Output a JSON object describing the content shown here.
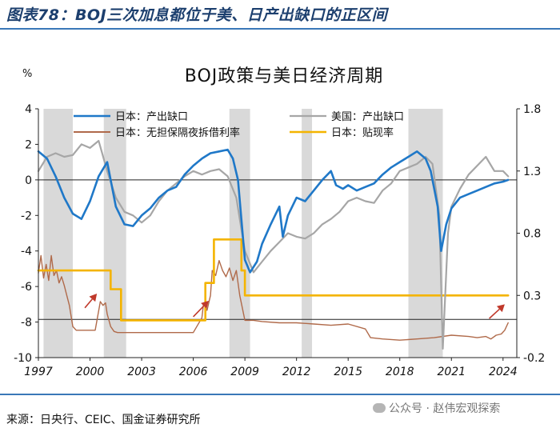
{
  "figure_title": "图表78：BOJ三次加息都位于美、日产出缺口的正区间",
  "source": "来源：日央行、CEIC、国金证券研究所",
  "watermark": "公众号 · 赵伟宏观探索",
  "colors": {
    "jp_gap": "#1f78c8",
    "us_gap": "#a6a6a6",
    "call_rate": "#b06a4a",
    "discount_rate": "#f4b400",
    "shade": "#d9d9d9",
    "arrow": "#c0392b",
    "title_rule": "#3a78b8"
  },
  "chart_data": {
    "type": "line",
    "title": "BOJ政策与美日经济周期",
    "left_axis": {
      "unit_label": "%",
      "range": [
        -10,
        4
      ],
      "ticks": [
        -10,
        -8,
        -6,
        -4,
        -2,
        0,
        2,
        4
      ]
    },
    "right_axis": {
      "range": [
        -0.2,
        1.8
      ],
      "ticks": [
        -0.2,
        0.3,
        0.8,
        1.3,
        1.8
      ]
    },
    "x_axis": {
      "range": [
        1997,
        2024.8
      ],
      "ticks": [
        1997,
        2000,
        2003,
        2006,
        2009,
        2012,
        2015,
        2018,
        2021,
        2024
      ]
    },
    "legend": [
      {
        "label": "日本：产出缺口",
        "series": "jp_gap"
      },
      {
        "label": "美国：产出缺口",
        "series": "us_gap"
      },
      {
        "label": "日本：无担保隔夜拆借利率",
        "series": "call_rate"
      },
      {
        "label": "日本：贴现率",
        "series": "discount_rate"
      }
    ],
    "legend_position": "top",
    "shaded_periods": [
      [
        1997.3,
        1999.0
      ],
      [
        2000.8,
        2002.1
      ],
      [
        2008.1,
        2009.3
      ],
      [
        2012.3,
        2012.9
      ],
      [
        2018.5,
        2020.5
      ]
    ],
    "arrows": [
      {
        "from": [
          1999.7,
          -7.2
        ],
        "to": [
          2000.4,
          -6.4
        ]
      },
      {
        "from": [
          2006.0,
          -7.7
        ],
        "to": [
          2006.9,
          -6.8
        ]
      },
      {
        "from": [
          2023.2,
          -7.8
        ],
        "to": [
          2024.1,
          -7.0
        ]
      }
    ],
    "reference_lines": [
      {
        "axis": "left",
        "y": 0
      },
      {
        "axis": "left",
        "y": -7.85
      }
    ],
    "series": [
      {
        "id": "jp_gap",
        "name": "日本：产出缺口",
        "axis": "left",
        "width": 2.6,
        "x": [
          1997.0,
          1997.5,
          1998.0,
          1998.5,
          1999.0,
          1999.5,
          2000.0,
          2000.5,
          2001.0,
          2001.5,
          2002.0,
          2002.5,
          2003.0,
          2003.5,
          2004.0,
          2004.5,
          2005.0,
          2005.5,
          2006.0,
          2006.5,
          2007.0,
          2007.5,
          2008.0,
          2008.3,
          2008.6,
          2009.0,
          2009.3,
          2009.7,
          2010.0,
          2010.5,
          2011.0,
          2011.2,
          2011.5,
          2012.0,
          2012.5,
          2013.0,
          2013.5,
          2014.0,
          2014.3,
          2014.7,
          2015.0,
          2015.5,
          2016.0,
          2016.5,
          2017.0,
          2017.5,
          2018.0,
          2018.5,
          2019.0,
          2019.5,
          2019.8,
          2020.2,
          2020.4,
          2020.7,
          2021.0,
          2021.5,
          2022.0,
          2022.5,
          2023.0,
          2023.5,
          2024.0,
          2024.3
        ],
        "y": [
          1.6,
          1.2,
          0.2,
          -1.0,
          -1.9,
          -2.2,
          -1.2,
          0.2,
          1.0,
          -1.5,
          -2.5,
          -2.6,
          -2.0,
          -1.6,
          -1.0,
          -0.6,
          -0.4,
          0.3,
          0.8,
          1.2,
          1.5,
          1.6,
          1.7,
          1.2,
          0.0,
          -4.5,
          -5.2,
          -4.6,
          -3.6,
          -2.5,
          -1.5,
          -3.2,
          -2.0,
          -1.0,
          -1.2,
          -0.6,
          0.0,
          0.5,
          -0.3,
          -0.5,
          -0.3,
          -0.6,
          -0.4,
          -0.2,
          0.3,
          0.7,
          1.0,
          1.3,
          1.6,
          1.2,
          0.5,
          -1.5,
          -4.0,
          -2.5,
          -1.6,
          -1.0,
          -0.8,
          -0.6,
          -0.4,
          -0.2,
          -0.1,
          0.0
        ]
      },
      {
        "id": "us_gap",
        "name": "美国：产出缺口",
        "axis": "left",
        "width": 2.2,
        "x": [
          1997.0,
          1997.5,
          1998.0,
          1998.5,
          1999.0,
          1999.5,
          2000.0,
          2000.5,
          2001.0,
          2001.5,
          2002.0,
          2002.5,
          2003.0,
          2003.5,
          2004.0,
          2004.5,
          2005.0,
          2005.5,
          2006.0,
          2006.5,
          2007.0,
          2007.5,
          2008.0,
          2008.5,
          2009.0,
          2009.5,
          2010.0,
          2010.5,
          2011.0,
          2011.5,
          2012.0,
          2012.5,
          2013.0,
          2013.5,
          2014.0,
          2014.5,
          2015.0,
          2015.5,
          2016.0,
          2016.5,
          2017.0,
          2017.5,
          2018.0,
          2018.5,
          2019.0,
          2019.5,
          2019.9,
          2020.3,
          2020.5,
          2020.8,
          2021.0,
          2021.5,
          2022.0,
          2022.5,
          2023.0,
          2023.5,
          2024.0,
          2024.3
        ],
        "y": [
          0.5,
          1.3,
          1.5,
          1.3,
          1.4,
          2.0,
          1.8,
          2.2,
          0.5,
          -1.0,
          -1.8,
          -2.0,
          -2.4,
          -2.0,
          -1.2,
          -0.6,
          -0.2,
          0.2,
          0.5,
          0.3,
          0.5,
          0.6,
          0.2,
          -1.0,
          -4.0,
          -5.2,
          -4.6,
          -4.0,
          -3.5,
          -3.0,
          -3.2,
          -3.3,
          -3.0,
          -2.5,
          -2.2,
          -1.8,
          -1.2,
          -1.0,
          -1.2,
          -1.3,
          -0.6,
          -0.2,
          0.5,
          0.7,
          0.9,
          1.3,
          0.9,
          -2.0,
          -9.5,
          -3.0,
          -1.5,
          -0.5,
          0.3,
          0.8,
          1.3,
          0.5,
          0.5,
          0.2
        ]
      },
      {
        "id": "call_rate",
        "name": "日本：无担保隔夜拆借利率",
        "axis": "right",
        "width": 1.4,
        "x": [
          1997.0,
          1997.15,
          1997.3,
          1997.45,
          1997.6,
          1997.75,
          1997.9,
          1998.05,
          1998.2,
          1998.35,
          1998.5,
          1998.65,
          1998.8,
          1999.0,
          1999.2,
          1999.6,
          2000.0,
          2000.3,
          2000.6,
          2000.75,
          2000.9,
          2001.0,
          2001.2,
          2001.4,
          2001.6,
          2002.0,
          2004.0,
          2006.0,
          2006.5,
          2006.6,
          2006.8,
          2007.0,
          2007.1,
          2007.3,
          2007.5,
          2007.7,
          2007.9,
          2008.1,
          2008.3,
          2008.5,
          2008.7,
          2008.85,
          2009.0,
          2009.5,
          2010.0,
          2011.0,
          2012.0,
          2013.0,
          2014.0,
          2015.0,
          2016.0,
          2016.3,
          2017.0,
          2018.0,
          2019.0,
          2020.0,
          2021.0,
          2022.0,
          2022.5,
          2023.0,
          2023.3,
          2023.6,
          2023.9,
          2024.1,
          2024.3
        ],
        "y": [
          0.48,
          0.62,
          0.44,
          0.55,
          0.42,
          0.62,
          0.46,
          0.5,
          0.4,
          0.45,
          0.38,
          0.3,
          0.22,
          0.05,
          0.02,
          0.02,
          0.02,
          0.02,
          0.25,
          0.22,
          0.24,
          0.15,
          0.05,
          0.01,
          0.001,
          0.001,
          0.001,
          0.001,
          0.12,
          0.24,
          0.18,
          0.3,
          0.5,
          0.46,
          0.58,
          0.5,
          0.45,
          0.52,
          0.42,
          0.5,
          0.3,
          0.2,
          0.1,
          0.1,
          0.09,
          0.08,
          0.08,
          0.07,
          0.06,
          0.07,
          0.03,
          -0.04,
          -0.05,
          -0.06,
          -0.05,
          -0.04,
          -0.02,
          -0.03,
          -0.04,
          -0.03,
          -0.05,
          -0.02,
          -0.01,
          0.02,
          0.08
        ]
      },
      {
        "id": "discount_rate",
        "name": "日本：贴现率",
        "axis": "right",
        "width": 2.6,
        "step": true,
        "x": [
          1997.0,
          2001.2,
          2001.8,
          2006.7,
          2007.2,
          2008.8,
          2009.0,
          2024.3
        ],
        "y": [
          0.5,
          0.35,
          0.1,
          0.4,
          0.75,
          0.5,
          0.3,
          0.3
        ]
      }
    ]
  }
}
